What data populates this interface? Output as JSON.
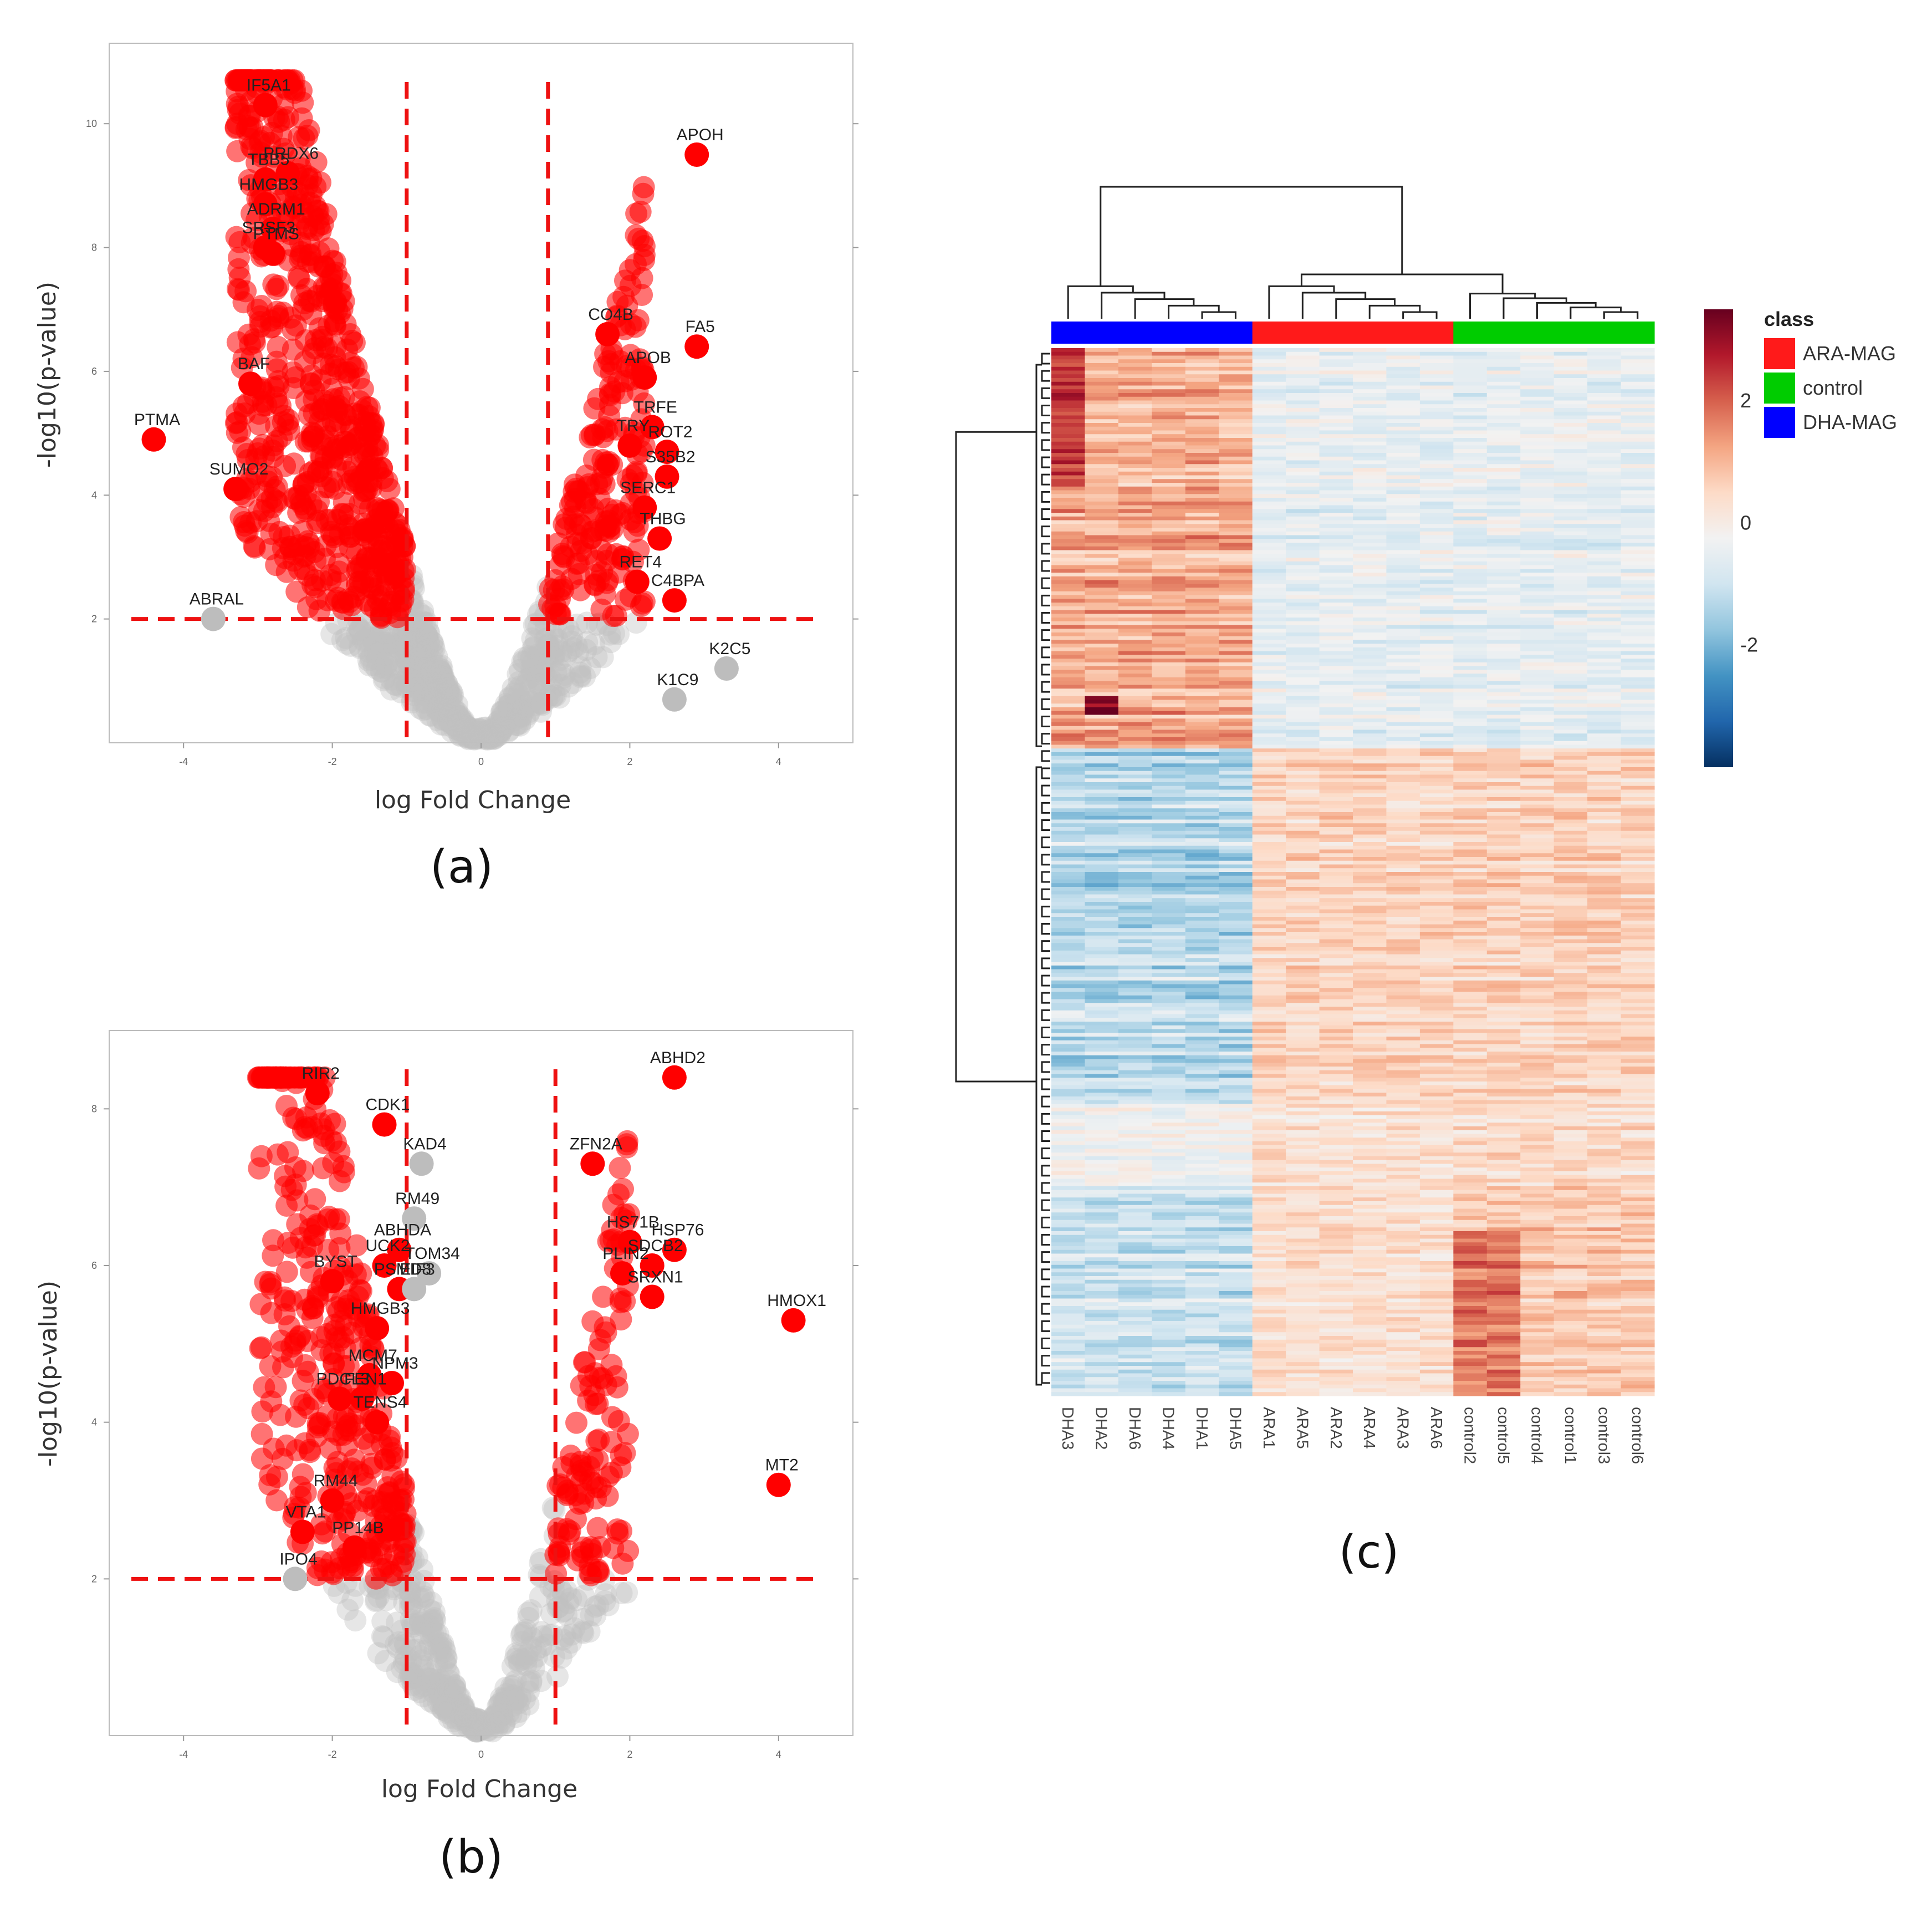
{
  "chart_data": [
    {
      "type": "scatter",
      "panel_label": "(a)",
      "xlabel": "log Fold Change",
      "ylabel": "-log10(p-value)",
      "xlim": [
        -5,
        5
      ],
      "ylim": [
        0,
        11.3
      ],
      "xticks": [
        -4,
        -2,
        0,
        2,
        4
      ],
      "yticks": [
        2,
        4,
        6,
        8,
        10
      ],
      "thresholds": {
        "x": [
          -1,
          0.9
        ],
        "y": 2
      },
      "colors": {
        "significant": "#ff0000",
        "nonsignificant": "#c0c0c0",
        "threshold": "#ee1111"
      },
      "labeled_points": [
        {
          "label": "IF5A1",
          "x": -2.9,
          "y": 10.3
        },
        {
          "label": "APOH",
          "x": 2.9,
          "y": 9.5
        },
        {
          "label": "PRDX6",
          "x": -2.6,
          "y": 9.2
        },
        {
          "label": "TBB5",
          "x": -2.9,
          "y": 9.1
        },
        {
          "label": "HMGB3",
          "x": -2.9,
          "y": 8.7
        },
        {
          "label": "ADRM1",
          "x": -2.8,
          "y": 8.3
        },
        {
          "label": "SRSF3",
          "x": -2.9,
          "y": 8.0
        },
        {
          "label": "PTMS",
          "x": -2.8,
          "y": 7.9
        },
        {
          "label": "BAF",
          "x": -3.1,
          "y": 5.8
        },
        {
          "label": "PTMA",
          "x": -4.4,
          "y": 4.9
        },
        {
          "label": "SUMO2",
          "x": -3.3,
          "y": 4.1
        },
        {
          "label": "ABRAL",
          "x": -3.6,
          "y": 2.0
        },
        {
          "label": "CO4B",
          "x": 1.7,
          "y": 6.6
        },
        {
          "label": "FA5",
          "x": 2.9,
          "y": 6.4
        },
        {
          "label": "APOB",
          "x": 2.2,
          "y": 5.9
        },
        {
          "label": "TRFE",
          "x": 2.3,
          "y": 5.1
        },
        {
          "label": "TRY",
          "x": 2.0,
          "y": 4.8
        },
        {
          "label": "ROT2",
          "x": 2.5,
          "y": 4.7
        },
        {
          "label": "S35B2",
          "x": 2.5,
          "y": 4.3
        },
        {
          "label": "SERC1",
          "x": 2.2,
          "y": 3.8
        },
        {
          "label": "THBG",
          "x": 2.4,
          "y": 3.3
        },
        {
          "label": "RET4",
          "x": 2.1,
          "y": 2.6
        },
        {
          "label": "C4BPA",
          "x": 2.6,
          "y": 2.3
        },
        {
          "label": "K2C5",
          "x": 3.3,
          "y": 1.2
        },
        {
          "label": "K1C9",
          "x": 2.6,
          "y": 0.7
        }
      ]
    },
    {
      "type": "scatter",
      "panel_label": "(b)",
      "xlabel": "log Fold Change",
      "ylabel": "-log10(p-value)",
      "xlim": [
        -5,
        5
      ],
      "ylim": [
        0,
        9.0
      ],
      "xticks": [
        -4,
        -2,
        0,
        2,
        4
      ],
      "yticks": [
        2,
        4,
        6,
        8
      ],
      "thresholds": {
        "x": [
          -1,
          1
        ],
        "y": 2
      },
      "colors": {
        "significant": "#ff0000",
        "nonsignificant": "#c0c0c0",
        "threshold": "#ee1111"
      },
      "labeled_points": [
        {
          "label": "RIR2",
          "x": -2.2,
          "y": 8.2
        },
        {
          "label": "ABHD2",
          "x": 2.6,
          "y": 8.4
        },
        {
          "label": "CDK1",
          "x": -1.3,
          "y": 7.8
        },
        {
          "label": "KAD4",
          "x": -0.8,
          "y": 7.3
        },
        {
          "label": "ZFN2A",
          "x": 1.5,
          "y": 7.3
        },
        {
          "label": "RM49",
          "x": -0.9,
          "y": 6.6
        },
        {
          "label": "HS71B",
          "x": 2.0,
          "y": 6.3
        },
        {
          "label": "HSP76",
          "x": 2.6,
          "y": 6.2
        },
        {
          "label": "ABHDA",
          "x": -1.1,
          "y": 6.2
        },
        {
          "label": "UCK2",
          "x": -1.3,
          "y": 6.0
        },
        {
          "label": "SDCB2",
          "x": 2.3,
          "y": 6.0
        },
        {
          "label": "TOM34",
          "x": -0.7,
          "y": 5.9
        },
        {
          "label": "PLIN2",
          "x": 1.9,
          "y": 5.9
        },
        {
          "label": "BYST",
          "x": -2.0,
          "y": 5.8
        },
        {
          "label": "SRXN1",
          "x": 2.3,
          "y": 5.6
        },
        {
          "label": "PSMD8",
          "x": -1.1,
          "y": 5.7
        },
        {
          "label": "EIF3",
          "x": -0.9,
          "y": 5.7
        },
        {
          "label": "HMOX1",
          "x": 4.2,
          "y": 5.3
        },
        {
          "label": "HMGB3",
          "x": -1.4,
          "y": 5.2
        },
        {
          "label": "MCM7",
          "x": -1.5,
          "y": 4.6
        },
        {
          "label": "NPM3",
          "x": -1.2,
          "y": 4.5
        },
        {
          "label": "PDCL3",
          "x": -1.9,
          "y": 4.3
        },
        {
          "label": "FEN1",
          "x": -1.6,
          "y": 4.3
        },
        {
          "label": "TENS4",
          "x": -1.4,
          "y": 4.0
        },
        {
          "label": "RM44",
          "x": -2.0,
          "y": 3.0
        },
        {
          "label": "MT2",
          "x": 4.0,
          "y": 3.2
        },
        {
          "label": "VTA1",
          "x": -2.4,
          "y": 2.6
        },
        {
          "label": "PP14B",
          "x": -1.7,
          "y": 2.4
        },
        {
          "label": "IPO4",
          "x": -2.5,
          "y": 2.0
        }
      ]
    },
    {
      "type": "heatmap",
      "panel_label": "(c)",
      "columns": [
        "DHA3",
        "DHA2",
        "DHA6",
        "DHA4",
        "DHA1",
        "DHA5",
        "ARA1",
        "ARA5",
        "ARA2",
        "ARA4",
        "ARA3",
        "ARA6",
        "control2",
        "control5",
        "control4",
        "control1",
        "control3",
        "control6"
      ],
      "column_classes": [
        "DHA-MAG",
        "DHA-MAG",
        "DHA-MAG",
        "DHA-MAG",
        "DHA-MAG",
        "DHA-MAG",
        "ARA-MAG",
        "ARA-MAG",
        "ARA-MAG",
        "ARA-MAG",
        "ARA-MAG",
        "ARA-MAG",
        "control",
        "control",
        "control",
        "control",
        "control",
        "control"
      ],
      "legend_title": "class",
      "legend": [
        {
          "name": "ARA-MAG",
          "color": "#ff1a1a"
        },
        {
          "name": "control",
          "color": "#00cc00"
        },
        {
          "name": "DHA-MAG",
          "color": "#0000ff"
        }
      ],
      "colorbar": {
        "min": -4,
        "max": 3.5,
        "ticks": [
          "2",
          "0",
          "-2"
        ],
        "tick_values": [
          2,
          0,
          -2
        ],
        "colors": [
          "#053061",
          "#2166ac",
          "#4393c3",
          "#92c5de",
          "#d1e5f0",
          "#f2f2f2",
          "#fddbc7",
          "#f4a582",
          "#d6604d",
          "#b2182b",
          "#67001f"
        ]
      }
    }
  ]
}
